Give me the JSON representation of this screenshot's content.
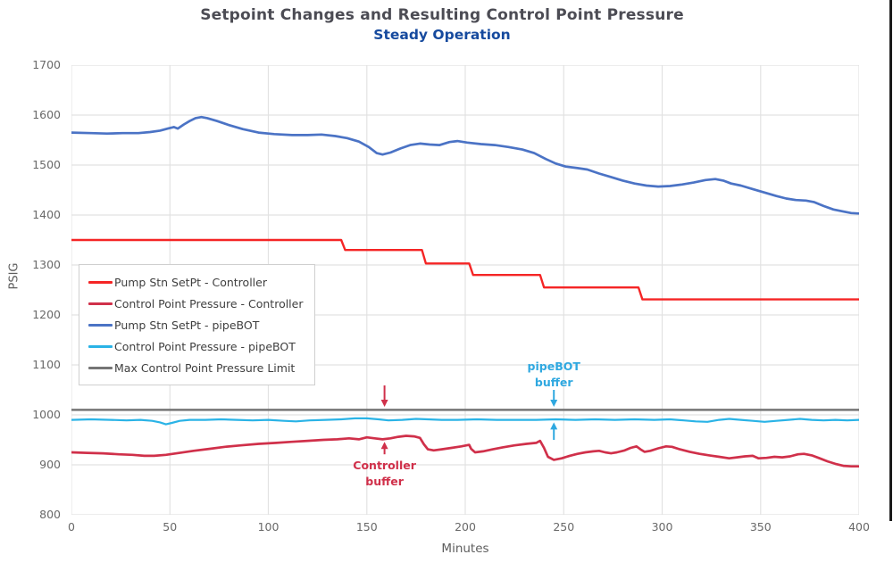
{
  "title": "Setpoint Changes and Resulting Control Point Pressure",
  "subtitle": "Steady Operation",
  "colors": {
    "title": "#4c4c54",
    "subtitle": "#164a9e",
    "tick_label": "#696969",
    "axis_label": "#5e5e5e",
    "grid": "#e2e2e2",
    "legend_text": "#3f3f3f",
    "legend_border": "#cfcfcf",
    "window_right_border": "#1b1b1b"
  },
  "chart_data": {
    "type": "line",
    "title": "Setpoint Changes and Resulting Control Point Pressure",
    "subtitle": "Steady Operation",
    "xlabel": "Minutes",
    "ylabel": "PSIG",
    "xlim": [
      0,
      400
    ],
    "ylim": [
      800,
      1700
    ],
    "x_ticks": [
      0,
      50,
      100,
      150,
      200,
      250,
      300,
      350,
      400
    ],
    "y_ticks": [
      800,
      900,
      1000,
      1100,
      1200,
      1300,
      1400,
      1500,
      1600,
      1700
    ],
    "grid": true,
    "legend_position": "upper-left-inside",
    "series": [
      {
        "name": "Pump Stn SetPt - Controller",
        "color": "#f52525",
        "width": 2.4,
        "points": [
          [
            0,
            1350
          ],
          [
            137,
            1350
          ],
          [
            139,
            1330
          ],
          [
            178,
            1330
          ],
          [
            180,
            1303
          ],
          [
            202,
            1303
          ],
          [
            204,
            1280
          ],
          [
            238,
            1280
          ],
          [
            240,
            1255
          ],
          [
            288,
            1255
          ],
          [
            290,
            1231
          ],
          [
            400,
            1231
          ]
        ]
      },
      {
        "name": "Control Point Pressure - Controller",
        "color": "#d0304a",
        "width": 2.7,
        "points": [
          [
            0,
            925
          ],
          [
            8,
            924
          ],
          [
            16,
            923
          ],
          [
            24,
            921
          ],
          [
            31,
            920
          ],
          [
            37,
            918
          ],
          [
            42,
            918
          ],
          [
            48,
            920
          ],
          [
            55,
            924
          ],
          [
            62,
            928
          ],
          [
            70,
            932
          ],
          [
            78,
            936
          ],
          [
            86,
            939
          ],
          [
            95,
            942
          ],
          [
            104,
            944
          ],
          [
            112,
            946
          ],
          [
            120,
            948
          ],
          [
            128,
            950
          ],
          [
            135,
            951
          ],
          [
            141,
            953
          ],
          [
            146,
            951
          ],
          [
            150,
            955
          ],
          [
            154,
            953
          ],
          [
            158,
            951
          ],
          [
            162,
            953
          ],
          [
            166,
            956
          ],
          [
            170,
            958
          ],
          [
            174,
            957
          ],
          [
            177,
            954
          ],
          [
            179,
            941
          ],
          [
            181,
            931
          ],
          [
            184,
            929
          ],
          [
            188,
            931
          ],
          [
            193,
            934
          ],
          [
            198,
            937
          ],
          [
            202,
            940
          ],
          [
            203,
            932
          ],
          [
            205,
            925
          ],
          [
            209,
            927
          ],
          [
            214,
            931
          ],
          [
            219,
            935
          ],
          [
            225,
            939
          ],
          [
            231,
            942
          ],
          [
            236,
            944
          ],
          [
            238,
            948
          ],
          [
            240,
            934
          ],
          [
            242,
            916
          ],
          [
            245,
            910
          ],
          [
            249,
            913
          ],
          [
            253,
            918
          ],
          [
            257,
            922
          ],
          [
            261,
            925
          ],
          [
            265,
            927
          ],
          [
            268,
            928
          ],
          [
            271,
            925
          ],
          [
            274,
            923
          ],
          [
            277,
            925
          ],
          [
            281,
            929
          ],
          [
            284,
            934
          ],
          [
            287,
            937
          ],
          [
            289,
            931
          ],
          [
            291,
            926
          ],
          [
            294,
            928
          ],
          [
            298,
            933
          ],
          [
            302,
            937
          ],
          [
            305,
            936
          ],
          [
            309,
            931
          ],
          [
            314,
            926
          ],
          [
            319,
            922
          ],
          [
            324,
            919
          ],
          [
            329,
            916
          ],
          [
            334,
            913
          ],
          [
            338,
            915
          ],
          [
            342,
            917
          ],
          [
            346,
            918
          ],
          [
            349,
            913
          ],
          [
            353,
            914
          ],
          [
            357,
            916
          ],
          [
            361,
            915
          ],
          [
            365,
            917
          ],
          [
            369,
            921
          ],
          [
            372,
            922
          ],
          [
            376,
            919
          ],
          [
            380,
            913
          ],
          [
            384,
            907
          ],
          [
            388,
            902
          ],
          [
            392,
            898
          ],
          [
            396,
            897
          ],
          [
            400,
            897
          ]
        ]
      },
      {
        "name": "Pump Stn SetPt - pipeBOT",
        "color": "#4b73c5",
        "width": 2.7,
        "points": [
          [
            0,
            1565
          ],
          [
            10,
            1564
          ],
          [
            18,
            1563
          ],
          [
            26,
            1564
          ],
          [
            34,
            1564
          ],
          [
            40,
            1566
          ],
          [
            45,
            1569
          ],
          [
            49,
            1573
          ],
          [
            52,
            1576
          ],
          [
            54,
            1573
          ],
          [
            57,
            1581
          ],
          [
            60,
            1588
          ],
          [
            63,
            1594
          ],
          [
            66,
            1596
          ],
          [
            69,
            1594
          ],
          [
            74,
            1588
          ],
          [
            80,
            1580
          ],
          [
            87,
            1572
          ],
          [
            95,
            1565
          ],
          [
            103,
            1562
          ],
          [
            112,
            1560
          ],
          [
            120,
            1560
          ],
          [
            127,
            1561
          ],
          [
            134,
            1558
          ],
          [
            140,
            1554
          ],
          [
            146,
            1547
          ],
          [
            151,
            1536
          ],
          [
            155,
            1524
          ],
          [
            158,
            1521
          ],
          [
            162,
            1525
          ],
          [
            167,
            1533
          ],
          [
            172,
            1540
          ],
          [
            177,
            1543
          ],
          [
            182,
            1541
          ],
          [
            187,
            1540
          ],
          [
            192,
            1546
          ],
          [
            196,
            1548
          ],
          [
            201,
            1545
          ],
          [
            208,
            1542
          ],
          [
            215,
            1540
          ],
          [
            222,
            1536
          ],
          [
            229,
            1531
          ],
          [
            235,
            1524
          ],
          [
            241,
            1512
          ],
          [
            246,
            1503
          ],
          [
            251,
            1497
          ],
          [
            257,
            1494
          ],
          [
            262,
            1491
          ],
          [
            268,
            1483
          ],
          [
            274,
            1476
          ],
          [
            280,
            1469
          ],
          [
            286,
            1463
          ],
          [
            292,
            1459
          ],
          [
            298,
            1457
          ],
          [
            304,
            1458
          ],
          [
            310,
            1461
          ],
          [
            316,
            1465
          ],
          [
            322,
            1470
          ],
          [
            327,
            1472
          ],
          [
            331,
            1469
          ],
          [
            335,
            1463
          ],
          [
            340,
            1459
          ],
          [
            346,
            1452
          ],
          [
            352,
            1445
          ],
          [
            358,
            1438
          ],
          [
            363,
            1433
          ],
          [
            368,
            1430
          ],
          [
            373,
            1429
          ],
          [
            377,
            1426
          ],
          [
            382,
            1418
          ],
          [
            387,
            1411
          ],
          [
            392,
            1407
          ],
          [
            396,
            1404
          ],
          [
            400,
            1403
          ]
        ]
      },
      {
        "name": "Control Point Pressure - pipeBOT",
        "color": "#2ab3e6",
        "width": 2.2,
        "points": [
          [
            0,
            990
          ],
          [
            10,
            991
          ],
          [
            20,
            990
          ],
          [
            28,
            989
          ],
          [
            35,
            990
          ],
          [
            41,
            988
          ],
          [
            45,
            985
          ],
          [
            48,
            981
          ],
          [
            51,
            984
          ],
          [
            55,
            988
          ],
          [
            60,
            990
          ],
          [
            68,
            990
          ],
          [
            76,
            991
          ],
          [
            84,
            990
          ],
          [
            92,
            989
          ],
          [
            100,
            990
          ],
          [
            108,
            988
          ],
          [
            114,
            987
          ],
          [
            121,
            989
          ],
          [
            129,
            990
          ],
          [
            137,
            991
          ],
          [
            144,
            993
          ],
          [
            150,
            993
          ],
          [
            156,
            991
          ],
          [
            161,
            989
          ],
          [
            168,
            990
          ],
          [
            175,
            992
          ],
          [
            181,
            991
          ],
          [
            188,
            990
          ],
          [
            196,
            990
          ],
          [
            206,
            991
          ],
          [
            216,
            990
          ],
          [
            226,
            990
          ],
          [
            236,
            990
          ],
          [
            246,
            991
          ],
          [
            256,
            990
          ],
          [
            266,
            991
          ],
          [
            276,
            990
          ],
          [
            286,
            991
          ],
          [
            296,
            990
          ],
          [
            304,
            991
          ],
          [
            311,
            989
          ],
          [
            317,
            987
          ],
          [
            323,
            986
          ],
          [
            329,
            990
          ],
          [
            334,
            992
          ],
          [
            340,
            990
          ],
          [
            346,
            988
          ],
          [
            352,
            986
          ],
          [
            358,
            988
          ],
          [
            364,
            990
          ],
          [
            370,
            992
          ],
          [
            376,
            990
          ],
          [
            382,
            989
          ],
          [
            388,
            990
          ],
          [
            394,
            989
          ],
          [
            400,
            990
          ]
        ]
      },
      {
        "name": "Max Control Point Pressure Limit",
        "color": "#757575",
        "width": 2.5,
        "points": [
          [
            0,
            1010
          ],
          [
            400,
            1010
          ]
        ]
      }
    ],
    "annotations": [
      {
        "id": "controller-buffer",
        "text_lines": [
          "Controller",
          "buffer"
        ],
        "color": "#d0304a",
        "x": 159,
        "label_psig": 914,
        "arrows": [
          {
            "x": 159,
            "tail_psig": 1059,
            "tip_psig": 1016
          },
          {
            "x": 159,
            "tail_psig": 921,
            "tip_psig": 946
          }
        ]
      },
      {
        "id": "pipebot-buffer",
        "text_lines": [
          "pipeBOT",
          "buffer"
        ],
        "color": "#2fa8e0",
        "x": 245,
        "label_psig": 1113,
        "arrows": [
          {
            "x": 245,
            "tail_psig": 1050,
            "tip_psig": 1016
          },
          {
            "x": 245,
            "tail_psig": 950,
            "tip_psig": 985
          }
        ]
      }
    ]
  }
}
